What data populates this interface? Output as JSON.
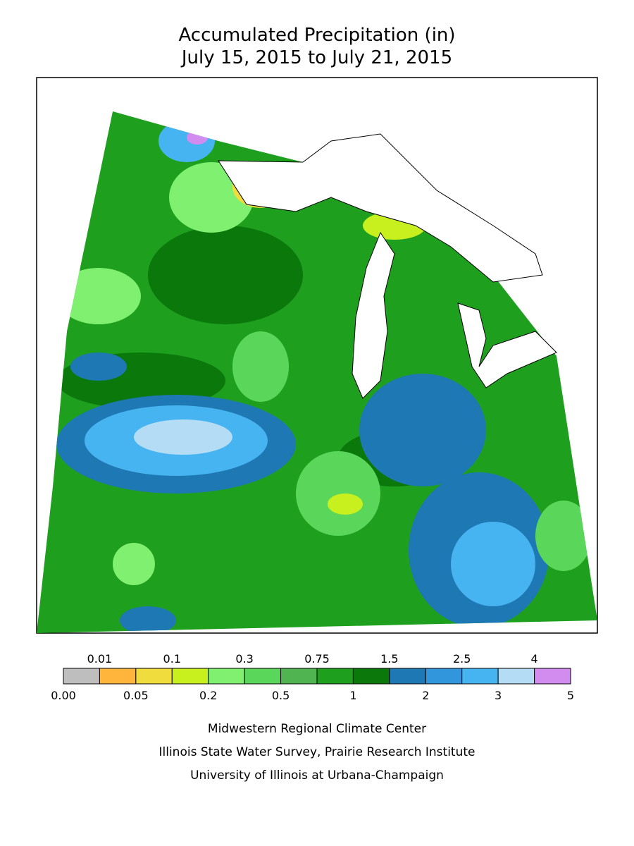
{
  "header": {
    "title": "Accumulated Precipitation (in)",
    "subtitle": "July 15, 2015 to July 21, 2015"
  },
  "legend": {
    "colors": [
      "#bebebe",
      "#ffb43c",
      "#f0dc3c",
      "#c8f01e",
      "#80f070",
      "#5ad75a",
      "#50b450",
      "#1ea01e",
      "#0a780a",
      "#1e78b4",
      "#3296dc",
      "#46b4f0",
      "#b4dcf5",
      "#d28cf0"
    ],
    "breaks": [
      {
        "value": 0,
        "label": "0.00"
      },
      0.01,
      0.05,
      0.1,
      0.2,
      0.3,
      0.5,
      0.75,
      1,
      1.5,
      2,
      2.5,
      3,
      4,
      5
    ]
  },
  "credits": [
    "Midwestern Regional Climate Center",
    "Illinois State Water Survey, Prairie Research Institute",
    "University of Illinois at Urbana-Champaign"
  ]
}
